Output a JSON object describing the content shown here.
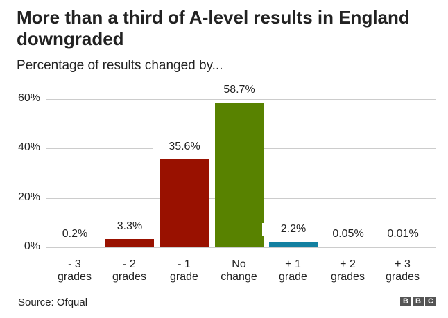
{
  "header": {
    "title": "More than a third of A-level results in England downgraded",
    "subtitle": "Percentage of results changed by..."
  },
  "footer": {
    "source": "Source: Ofqual",
    "logo": [
      "B",
      "B",
      "C"
    ]
  },
  "colors": {
    "downgrade_small": "#c4756c",
    "downgrade": "#991100",
    "no_change": "#588200",
    "upgrade": "#1380a1",
    "upgrade_faint": "#b6d2dc",
    "grid": "#cccccc"
  },
  "chart_data": {
    "type": "bar",
    "title": "More than a third of A-level results in England downgraded",
    "subtitle": "Percentage of results changed by...",
    "xlabel": "",
    "ylabel": "",
    "ylim": [
      0,
      60
    ],
    "yticks": [
      "0%",
      "20%",
      "40%",
      "60%"
    ],
    "grid": true,
    "legend": null,
    "categories": [
      "- 3 grades",
      "- 2 grades",
      "- 1 grade",
      "No change",
      "+ 1 grade",
      "+ 2 grades",
      "+ 3 grades"
    ],
    "category_lines": [
      [
        "- 3",
        "grades"
      ],
      [
        "- 2",
        "grades"
      ],
      [
        "- 1",
        "grade"
      ],
      [
        "No",
        "change"
      ],
      [
        "+ 1",
        "grade"
      ],
      [
        "+ 2",
        "grades"
      ],
      [
        "+ 3",
        "grades"
      ]
    ],
    "values": [
      0.2,
      3.3,
      35.6,
      58.7,
      2.2,
      0.05,
      0.01
    ],
    "labels": [
      "0.2%",
      "3.3%",
      "35.6%",
      "58.7%",
      "2.2%",
      "0.05%",
      "0.01%"
    ],
    "bar_colors": [
      "#c4756c",
      "#991100",
      "#991100",
      "#588200",
      "#1380a1",
      "#b6d2dc",
      "#d6e6ec"
    ],
    "source": "Source: Ofqual"
  }
}
